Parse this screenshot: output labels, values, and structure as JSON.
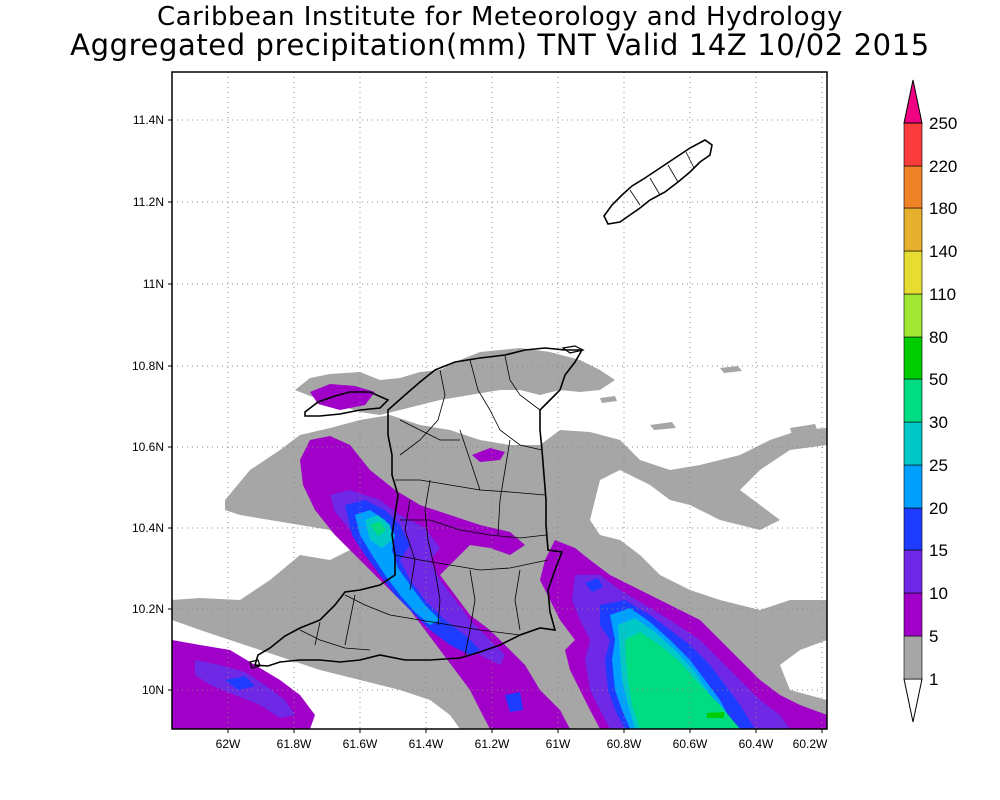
{
  "title": {
    "line1": "Caribbean Institute for Meteorology and Hydrology",
    "line2": "Aggregated precipitation(mm) TNT Valid 14Z 10/02 2015"
  },
  "map": {
    "lat_ticks": [
      {
        "value": 11.4,
        "label": "11.4N"
      },
      {
        "value": 11.2,
        "label": "11.2N"
      },
      {
        "value": 11.0,
        "label": "11N"
      },
      {
        "value": 10.8,
        "label": "10.8N"
      },
      {
        "value": 10.6,
        "label": "10.6N"
      },
      {
        "value": 10.4,
        "label": "10.4N"
      },
      {
        "value": 10.2,
        "label": "10.2N"
      },
      {
        "value": 10.0,
        "label": "10N"
      }
    ],
    "lon_ticks": [
      {
        "value": -62.0,
        "label": "62W"
      },
      {
        "value": -61.8,
        "label": "61.8W"
      },
      {
        "value": -61.6,
        "label": "61.6W"
      },
      {
        "value": -61.4,
        "label": "61.4W"
      },
      {
        "value": -61.2,
        "label": "61.2W"
      },
      {
        "value": -61.0,
        "label": "61W"
      },
      {
        "value": -60.8,
        "label": "60.8W"
      },
      {
        "value": -60.6,
        "label": "60.6W"
      },
      {
        "value": -60.4,
        "label": "60.4W"
      },
      {
        "value": -60.2,
        "label": "60.2W"
      }
    ],
    "extent": {
      "lon_min": -62.14,
      "lon_max": -60.18,
      "lat_min": 9.9,
      "lat_max": 11.52
    }
  },
  "colorbar": {
    "levels": [
      "1",
      "5",
      "10",
      "15",
      "20",
      "25",
      "30",
      "50",
      "80",
      "110",
      "140",
      "180",
      "220",
      "250"
    ],
    "colors": [
      "#ffffff",
      "#a6a6a6",
      "#a000c8",
      "#6e28e6",
      "#1e3cff",
      "#00a0ff",
      "#00c8c8",
      "#00dc82",
      "#00cc00",
      "#a0e632",
      "#e6dc32",
      "#e6af2d",
      "#f08228",
      "#fa3c3c",
      "#f00082"
    ]
  },
  "colors": {
    "grey": "#a6a6a6",
    "purple": "#a000c8",
    "violet": "#6e28e6",
    "blue": "#1e3cff",
    "lightblue": "#00a0ff",
    "cyan": "#00c8c8",
    "green": "#00dc82"
  }
}
